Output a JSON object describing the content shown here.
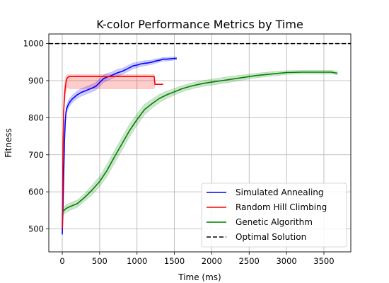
{
  "chart_data": {
    "type": "line",
    "title": "K-color Performance Metrics by Time",
    "xlabel": "Time (ms)",
    "ylabel": "Fitness",
    "xlim": [
      -180,
      3860
    ],
    "ylim": [
      438,
      1026
    ],
    "xticks": [
      0,
      500,
      1000,
      1500,
      2000,
      2500,
      3000,
      3500
    ],
    "yticks": [
      500,
      600,
      700,
      800,
      900,
      1000
    ],
    "grid": true,
    "legend_position": "lower-right",
    "series": [
      {
        "name": "Simulated Annealing",
        "color": "#0000ff",
        "x": [
          0,
          10,
          20,
          30,
          40,
          50,
          60,
          80,
          100,
          130,
          160,
          200,
          250,
          300,
          350,
          400,
          450,
          500,
          550,
          600,
          650,
          700,
          750,
          800,
          850,
          900,
          950,
          1000,
          1050,
          1100,
          1150,
          1200,
          1250,
          1300,
          1350,
          1400,
          1450,
          1500,
          1530
        ],
        "y": [
          485,
          560,
          650,
          740,
          790,
          815,
          825,
          835,
          842,
          850,
          855,
          862,
          868,
          872,
          876,
          880,
          885,
          895,
          905,
          910,
          913,
          918,
          922,
          925,
          930,
          935,
          940,
          942,
          945,
          947,
          948,
          950,
          953,
          955,
          958,
          958,
          959,
          960,
          960
        ],
        "band": [
          [
            485,
            485
          ],
          [
            555,
            565
          ],
          [
            640,
            660
          ],
          [
            730,
            750
          ],
          [
            780,
            800
          ],
          [
            805,
            825
          ],
          [
            815,
            835
          ],
          [
            825,
            845
          ],
          [
            832,
            852
          ],
          [
            840,
            860
          ],
          [
            845,
            865
          ],
          [
            852,
            872
          ],
          [
            858,
            878
          ],
          [
            862,
            882
          ],
          [
            866,
            886
          ],
          [
            870,
            890
          ],
          [
            875,
            895
          ],
          [
            885,
            905
          ],
          [
            895,
            915
          ],
          [
            900,
            920
          ],
          [
            904,
            922
          ],
          [
            909,
            927
          ],
          [
            913,
            931
          ],
          [
            917,
            933
          ],
          [
            922,
            938
          ],
          [
            927,
            943
          ],
          [
            932,
            948
          ],
          [
            935,
            949
          ],
          [
            938,
            952
          ],
          [
            940,
            954
          ],
          [
            942,
            954
          ],
          [
            944,
            956
          ],
          [
            947,
            959
          ],
          [
            950,
            960
          ],
          [
            953,
            963
          ],
          [
            953,
            963
          ],
          [
            954,
            964
          ],
          [
            956,
            964
          ],
          [
            956,
            964
          ]
        ]
      },
      {
        "name": "Random Hill Climbing",
        "color": "#ff0000",
        "x": [
          0,
          10,
          20,
          30,
          40,
          50,
          60,
          80,
          100,
          1230,
          1240,
          1350
        ],
        "y": [
          500,
          720,
          820,
          860,
          880,
          895,
          905,
          910,
          911,
          911,
          890,
          890
        ],
        "band": [
          [
            500,
            500
          ],
          [
            690,
            750
          ],
          [
            790,
            850
          ],
          [
            835,
            885
          ],
          [
            860,
            900
          ],
          [
            875,
            912
          ],
          [
            885,
            915
          ],
          [
            880,
            916
          ],
          [
            878,
            916
          ],
          [
            878,
            916
          ],
          [
            890,
            890
          ],
          [
            890,
            890
          ]
        ]
      },
      {
        "name": "Genetic Algorithm",
        "color": "#008000",
        "x": [
          0,
          50,
          100,
          200,
          300,
          400,
          500,
          600,
          700,
          800,
          900,
          1000,
          1100,
          1200,
          1300,
          1400,
          1500,
          1600,
          1700,
          1800,
          1900,
          2000,
          2200,
          2400,
          2600,
          2800,
          3000,
          3200,
          3400,
          3600,
          3680
        ],
        "y": [
          545,
          555,
          560,
          568,
          585,
          605,
          628,
          658,
          695,
          730,
          765,
          795,
          822,
          838,
          852,
          862,
          870,
          878,
          884,
          889,
          893,
          896,
          902,
          908,
          914,
          918,
          922,
          923,
          923,
          923,
          920
        ],
        "band": [
          [
            535,
            555
          ],
          [
            545,
            565
          ],
          [
            550,
            570
          ],
          [
            558,
            578
          ],
          [
            575,
            595
          ],
          [
            592,
            618
          ],
          [
            614,
            642
          ],
          [
            642,
            674
          ],
          [
            678,
            712
          ],
          [
            713,
            747
          ],
          [
            748,
            782
          ],
          [
            780,
            810
          ],
          [
            808,
            836
          ],
          [
            826,
            850
          ],
          [
            841,
            863
          ],
          [
            852,
            872
          ],
          [
            861,
            879
          ],
          [
            870,
            886
          ],
          [
            876,
            892
          ],
          [
            881,
            897
          ],
          [
            885,
            901
          ],
          [
            888,
            904
          ],
          [
            894,
            910
          ],
          [
            901,
            915
          ],
          [
            908,
            920
          ],
          [
            912,
            924
          ],
          [
            917,
            927
          ],
          [
            918,
            928
          ],
          [
            918,
            928
          ],
          [
            918,
            928
          ],
          [
            916,
            924
          ]
        ]
      }
    ],
    "reference_lines": [
      {
        "name": "Optimal Solution",
        "y": 1000,
        "color": "#000000",
        "style": "dashed"
      }
    ]
  }
}
